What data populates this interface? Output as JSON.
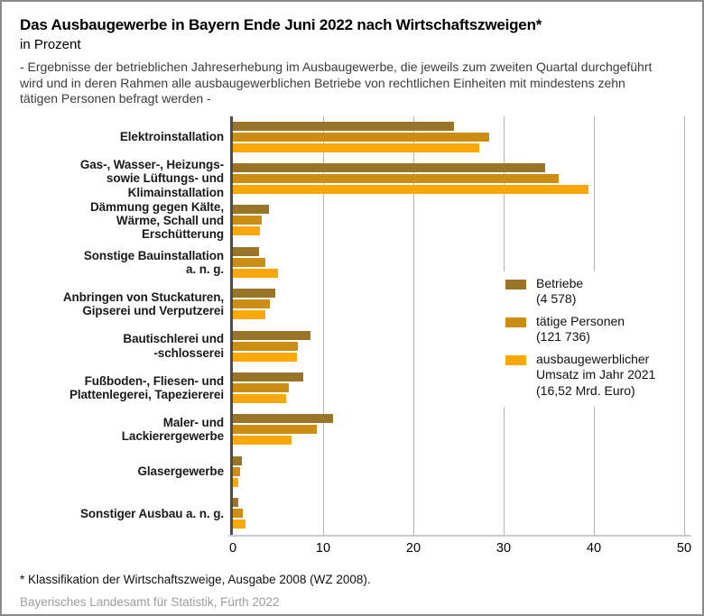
{
  "header": {
    "title": "Das Ausbaugewerbe in Bayern Ende Juni 2022 nach Wirtschaftszweigen*",
    "subtitle": "in Prozent",
    "note": "- Ergebnisse der betrieblichen Jahreserhebung im Ausbaugewerbe, die jeweils zum zweiten Quartal durchgeführt wird und in deren Rahmen alle ausbaugewerblichen Betriebe von rechtlichen Einheiten mit mindestens zehn tätigen Personen befragt werden -"
  },
  "chart_data": {
    "type": "bar",
    "orientation": "horizontal",
    "unit": "Prozent",
    "grid": true,
    "legend_position": "center-right",
    "xlabel": "",
    "ylabel": "",
    "xlim": [
      0,
      50
    ],
    "xticks": [
      0,
      10,
      20,
      30,
      40,
      50
    ],
    "categories": [
      [
        "Elektroinstallation"
      ],
      [
        "Gas-, Wasser-, Heizungs-",
        "sowie Lüftungs- und",
        "Klimainstallation"
      ],
      [
        "Dämmung gegen Kälte,",
        "Wärme, Schall und",
        "Erschütterung"
      ],
      [
        "Sonstige Bauinstallation",
        "a. n. g."
      ],
      [
        "Anbringen von Stuckaturen,",
        "Gipserei und Verputzerei"
      ],
      [
        "Bautischlerei und",
        "-schlosserei"
      ],
      [
        "Fußboden-, Fliesen- und",
        "Plattenlegerei, Tapeziererei"
      ],
      [
        "Maler- und",
        "Lackierergewerbe"
      ],
      [
        "Glasergewerbe"
      ],
      [
        "Sonstiger Ausbau a. n. g."
      ]
    ],
    "series": [
      {
        "key": "betriebe",
        "name": "Betriebe",
        "annotation": "(4 578)",
        "legend_lines": [
          "Betriebe",
          "(4 578)"
        ],
        "color": "#9a7428",
        "values": [
          24.5,
          34.6,
          4.0,
          2.9,
          4.7,
          8.6,
          7.8,
          11.1,
          1.0,
          0.6
        ]
      },
      {
        "key": "taetige-personen",
        "name": "tätige Personen",
        "annotation": "(121 736)",
        "legend_lines": [
          "tätige Personen",
          "(121 736)"
        ],
        "color": "#cc8e12",
        "values": [
          28.4,
          36.1,
          3.2,
          3.6,
          4.1,
          7.2,
          6.2,
          9.3,
          0.8,
          1.1
        ]
      },
      {
        "key": "umsatz",
        "name": "ausbaugewerblicher Umsatz im Jahr 2021",
        "annotation": "(16,52 Mrd. Euro)",
        "legend_lines": [
          "ausbaugewerblicher",
          "Umsatz im Jahr 2021",
          "(16,52 Mrd. Euro)"
        ],
        "color": "#f9a808",
        "values": [
          27.3,
          39.4,
          3.0,
          5.0,
          3.6,
          7.1,
          5.9,
          6.5,
          0.6,
          1.4
        ]
      }
    ]
  },
  "footer": {
    "footnote": "*  Klassifikation der Wirtschaftszweige, Ausgabe 2008 (WZ 2008).",
    "source": "Bayerisches Landesamt für Statistik, Fürth 2022"
  }
}
